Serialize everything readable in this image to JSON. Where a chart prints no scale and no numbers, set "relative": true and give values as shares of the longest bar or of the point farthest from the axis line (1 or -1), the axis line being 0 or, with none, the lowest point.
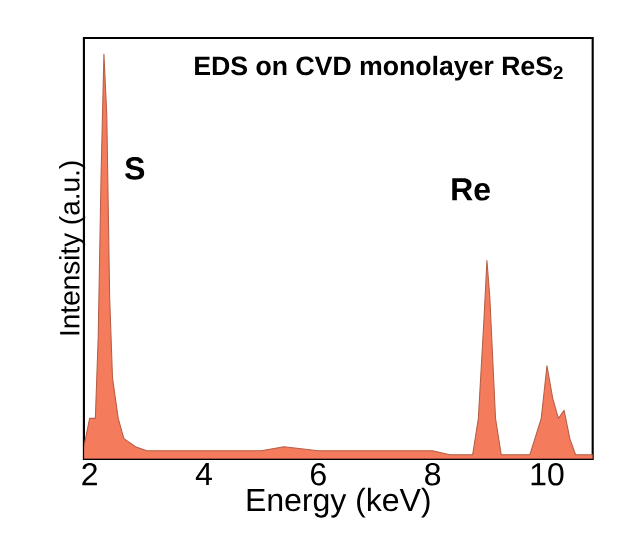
{
  "chart_data": {
    "type": "area",
    "title": "EDS on CVD monolayer ReS$_{2}$",
    "xlabel": "Energy (keV)",
    "ylabel": "Intensity (a.u.)",
    "relative": true,
    "tick_labels": "x",
    "xlim": [
      1.9,
      10.8
    ],
    "xticks": [
      2,
      4,
      6,
      8,
      10
    ],
    "x": [
      1.9,
      2.0,
      2.1,
      2.15,
      2.2,
      2.25,
      2.3,
      2.35,
      2.4,
      2.5,
      2.6,
      2.8,
      3.0,
      4.0,
      5.0,
      5.4,
      6.0,
      7.0,
      8.0,
      8.3,
      8.7,
      8.8,
      8.9,
      8.95,
      9.0,
      9.1,
      9.2,
      9.7,
      9.9,
      10.0,
      10.1,
      10.2,
      10.3,
      10.4,
      10.5,
      10.8
    ],
    "series": [
      {
        "color": "#f47c5c",
        "values": [
          0.03,
          0.1,
          0.1,
          0.3,
          0.7,
          1.0,
          0.85,
          0.4,
          0.2,
          0.1,
          0.05,
          0.03,
          0.02,
          0.02,
          0.02,
          0.03,
          0.02,
          0.02,
          0.02,
          0.01,
          0.01,
          0.1,
          0.35,
          0.49,
          0.4,
          0.1,
          0.01,
          0.01,
          0.1,
          0.23,
          0.15,
          0.1,
          0.12,
          0.05,
          0.01,
          0.01
        ]
      }
    ],
    "annotations": [
      "S",
      "Re"
    ]
  }
}
